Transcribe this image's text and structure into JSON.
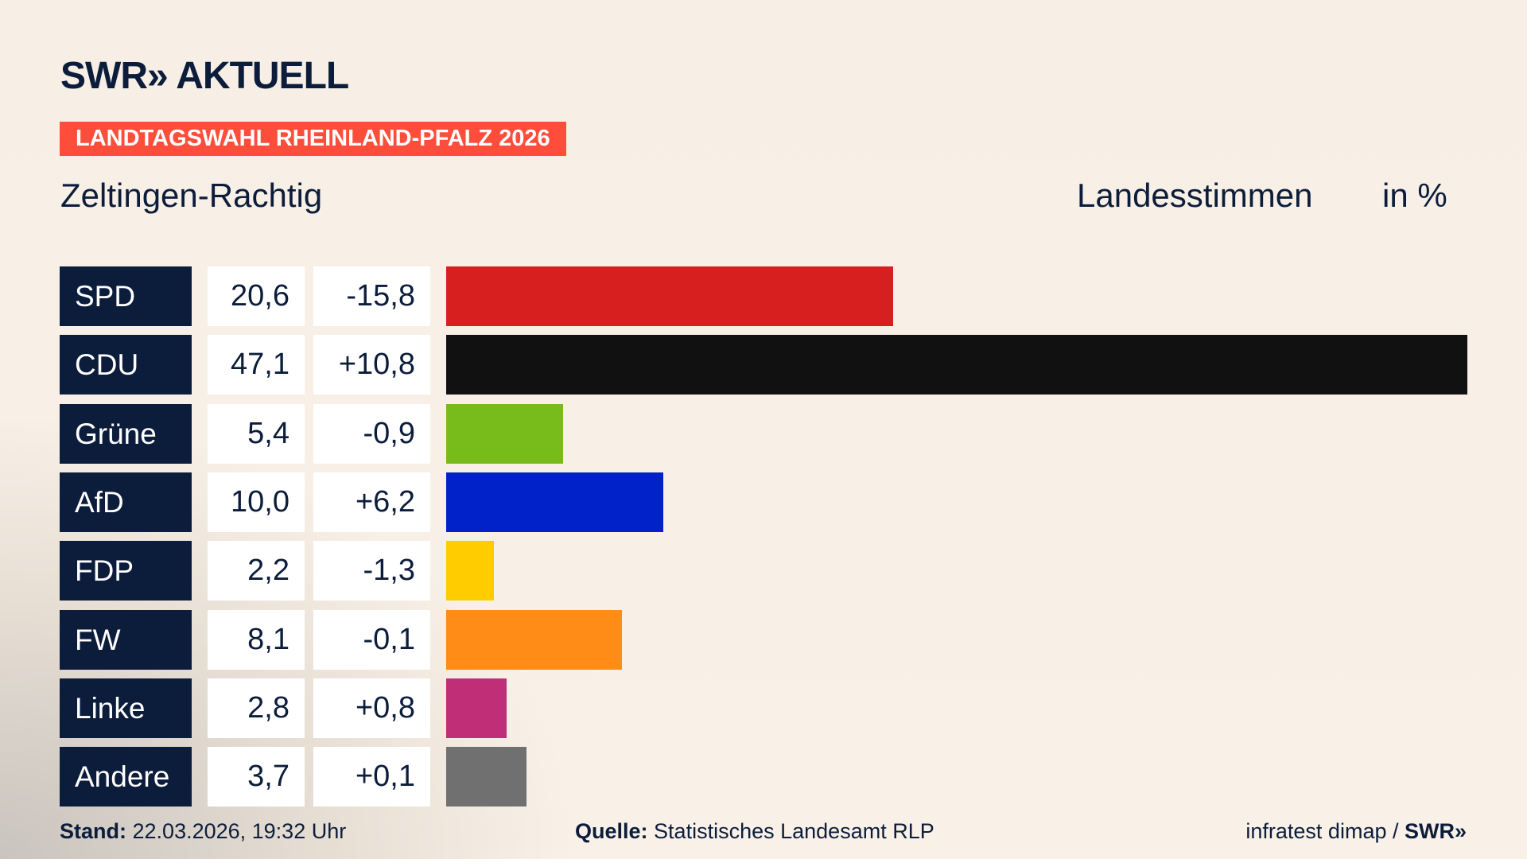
{
  "header": {
    "logo": "SWR» AKTUELL",
    "banner": "LANDTAGSWAHL RHEINLAND-PFALZ 2026",
    "place": "Zeltingen-Rachtig",
    "vote_type": "Landesstimmen",
    "unit": "in %"
  },
  "chart_data": {
    "type": "bar",
    "orientation": "horizontal",
    "xlim": [
      0,
      47.1
    ],
    "categories": [
      "SPD",
      "CDU",
      "Grüne",
      "AfD",
      "FDP",
      "FW",
      "Linke",
      "Andere"
    ],
    "values": [
      20.6,
      47.1,
      5.4,
      10.0,
      2.2,
      8.1,
      2.8,
      3.7
    ],
    "values_label": [
      "20,6",
      "47,1",
      "5,4",
      "10,0",
      "2,2",
      "8,1",
      "2,8",
      "3,7"
    ],
    "changes": [
      "-15,8",
      "+10,8",
      "-0,9",
      "+6,2",
      "-1,3",
      "-0,1",
      "+0,8",
      "+0,1"
    ],
    "colors": [
      "#d71f1f",
      "#111111",
      "#78bc1c",
      "#0022c8",
      "#ffcc00",
      "#ff8c17",
      "#bf2e77",
      "#707070"
    ]
  },
  "footer": {
    "stand_label": "Stand:",
    "stand": "22.03.2026, 19:32 Uhr",
    "source_label": "Quelle:",
    "source": "Statistisches Landesamt RLP",
    "credit": "infratest dimap / ",
    "credit_logo": "SWR»"
  }
}
